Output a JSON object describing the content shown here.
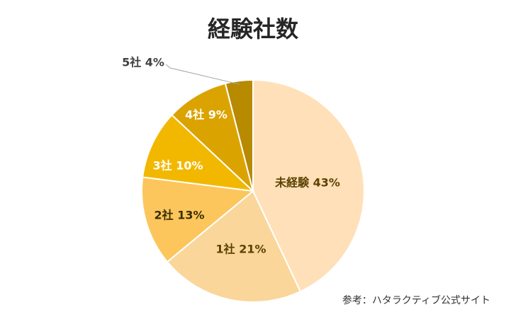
{
  "chart_data": {
    "type": "pie",
    "title": "経験社数",
    "categories": [
      "未経験",
      "1社",
      "2社",
      "3社",
      "4社",
      "5社"
    ],
    "values": [
      43,
      21,
      13,
      10,
      9,
      4
    ],
    "labels": [
      "未経験 43%",
      "1社 21%",
      "2社 13%",
      "3社 10%",
      "4社 9%",
      "5社 4%"
    ],
    "colors": [
      "#FFE0B8",
      "#FAD69A",
      "#FCC65C",
      "#F2B800",
      "#DBA300",
      "#B78A00"
    ],
    "label_colors": [
      "#5C4300",
      "#5C4300",
      "#3A2E00",
      "#ffffff",
      "#ffffff",
      "#404040"
    ],
    "source": "参考：ハタラクティブ公式サイト"
  }
}
